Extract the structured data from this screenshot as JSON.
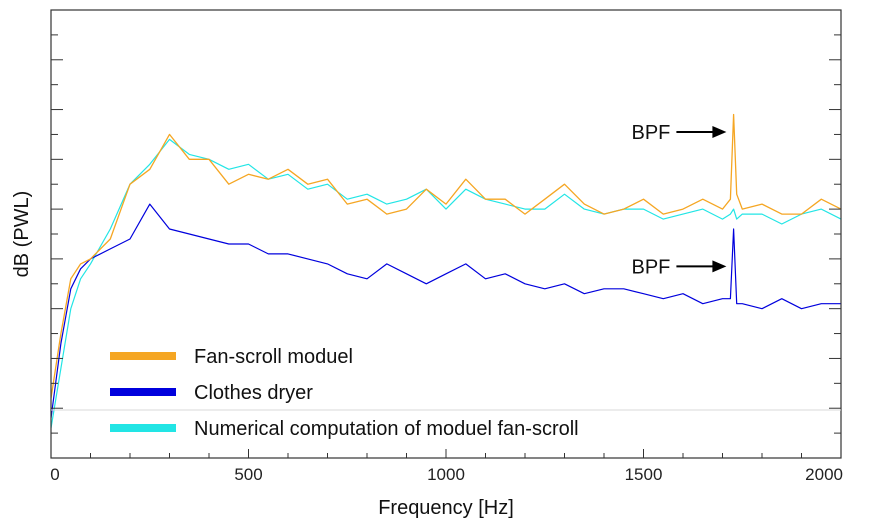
{
  "chart_data": {
    "type": "line",
    "title": "",
    "xlabel": "Frequency [Hz]",
    "ylabel": "dB (PWL)",
    "xlim": [
      0,
      2000
    ],
    "ylim": [
      0,
      9
    ],
    "grid": false,
    "x_ticks": [
      0,
      500,
      1000,
      1500,
      2000
    ],
    "x_tick_labels": [
      "0",
      "500",
      "1000",
      "1500",
      "2000"
    ],
    "y_tick_count": 18,
    "legend": {
      "placement": "bottom-left",
      "entries": [
        {
          "label": "Fan-scroll moduel",
          "color": "#f5a623"
        },
        {
          "label": "Clothes dryer",
          "color": "#0000dd"
        },
        {
          "label": "Numerical computation of moduel fan-scroll",
          "color": "#22e5e5"
        }
      ]
    },
    "annotations": [
      {
        "text": "BPF",
        "x": 1720,
        "y": 6.55,
        "target": "Fan-scroll moduel"
      },
      {
        "text": "BPF",
        "x": 1720,
        "y": 3.85,
        "target": "Clothes dryer"
      }
    ],
    "series": [
      {
        "name": "Fan-scroll moduel",
        "color": "#f5a623",
        "x": [
          0,
          25,
          50,
          75,
          100,
          150,
          200,
          250,
          300,
          350,
          400,
          450,
          500,
          550,
          600,
          650,
          700,
          750,
          800,
          850,
          900,
          950,
          1000,
          1050,
          1100,
          1150,
          1200,
          1250,
          1300,
          1350,
          1400,
          1450,
          1500,
          1550,
          1600,
          1650,
          1700,
          1720,
          1728,
          1736,
          1750,
          1800,
          1850,
          1900,
          1950,
          2000
        ],
        "y": [
          1.2,
          2.5,
          3.6,
          3.9,
          4.0,
          4.4,
          5.5,
          5.8,
          6.5,
          6.0,
          6.0,
          5.5,
          5.7,
          5.6,
          5.8,
          5.5,
          5.6,
          5.1,
          5.2,
          4.9,
          5.0,
          5.4,
          5.1,
          5.6,
          5.2,
          5.2,
          4.9,
          5.2,
          5.5,
          5.1,
          4.9,
          5.0,
          5.2,
          4.9,
          5.0,
          5.2,
          5.0,
          5.2,
          6.9,
          5.3,
          5.0,
          5.1,
          4.9,
          4.9,
          5.2,
          5.0
        ]
      },
      {
        "name": "Clothes dryer",
        "color": "#0000dd",
        "x": [
          0,
          25,
          50,
          75,
          100,
          150,
          200,
          250,
          300,
          350,
          400,
          450,
          500,
          550,
          600,
          650,
          700,
          750,
          800,
          850,
          900,
          950,
          1000,
          1050,
          1100,
          1150,
          1200,
          1250,
          1300,
          1350,
          1400,
          1450,
          1500,
          1550,
          1600,
          1650,
          1700,
          1720,
          1728,
          1736,
          1750,
          1800,
          1850,
          1900,
          1950,
          2000
        ],
        "y": [
          0.8,
          2.3,
          3.4,
          3.8,
          4.0,
          4.2,
          4.4,
          5.1,
          4.6,
          4.5,
          4.4,
          4.3,
          4.3,
          4.1,
          4.1,
          4.0,
          3.9,
          3.7,
          3.6,
          3.9,
          3.7,
          3.5,
          3.7,
          3.9,
          3.6,
          3.7,
          3.5,
          3.4,
          3.5,
          3.3,
          3.4,
          3.4,
          3.3,
          3.2,
          3.3,
          3.1,
          3.2,
          3.2,
          4.6,
          3.1,
          3.1,
          3.0,
          3.2,
          3.0,
          3.1,
          3.1
        ]
      },
      {
        "name": "Numerical computation of moduel fan-scroll",
        "color": "#22e5e5",
        "x": [
          0,
          25,
          50,
          75,
          100,
          150,
          200,
          250,
          300,
          350,
          400,
          450,
          500,
          550,
          600,
          650,
          700,
          750,
          800,
          850,
          900,
          950,
          1000,
          1050,
          1100,
          1150,
          1200,
          1250,
          1300,
          1350,
          1400,
          1450,
          1500,
          1550,
          1600,
          1650,
          1700,
          1720,
          1728,
          1736,
          1750,
          1800,
          1850,
          1900,
          1950,
          2000
        ],
        "y": [
          0.6,
          1.8,
          3.0,
          3.6,
          3.9,
          4.6,
          5.5,
          5.9,
          6.4,
          6.1,
          6.0,
          5.8,
          5.9,
          5.6,
          5.7,
          5.4,
          5.5,
          5.2,
          5.3,
          5.1,
          5.2,
          5.4,
          5.0,
          5.4,
          5.2,
          5.1,
          5.0,
          5.0,
          5.3,
          5.0,
          4.9,
          5.0,
          5.0,
          4.8,
          4.9,
          5.0,
          4.8,
          4.9,
          5.0,
          4.8,
          4.9,
          4.9,
          4.7,
          4.9,
          5.0,
          4.8
        ]
      }
    ]
  }
}
